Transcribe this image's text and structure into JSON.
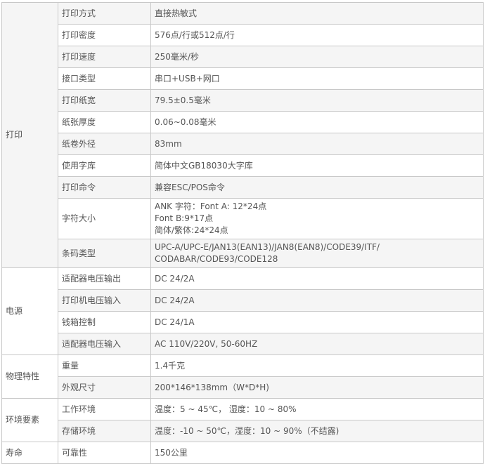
{
  "groups": [
    {
      "name": "打印",
      "rows": [
        {
          "key": "打印方式",
          "value": [
            "直接热敏式"
          ]
        },
        {
          "key": "打印密度",
          "value": [
            "576点/行或512点/行"
          ]
        },
        {
          "key": "打印速度",
          "value": [
            "250毫米/秒"
          ]
        },
        {
          "key": "接口类型",
          "value": [
            "串口+USB+网口"
          ]
        },
        {
          "key": "打印纸宽",
          "value": [
            "79.5±0.5毫米"
          ]
        },
        {
          "key": "纸张厚度",
          "value": [
            "0.06~0.08毫米"
          ]
        },
        {
          "key": "纸卷外径",
          "value": [
            "83mm"
          ]
        },
        {
          "key": "使用字库",
          "value": [
            "简体中文GB18030大字库"
          ]
        },
        {
          "key": "打印命令",
          "value": [
            "兼容ESC/POS命令"
          ]
        },
        {
          "key": "字符大小",
          "value": [
            "ANK 字符：Font A: 12*24点",
            "Font B:9*17点",
            "简体/繁体:24*24点"
          ]
        },
        {
          "key": "条码类型",
          "value": [
            "UPC-A/UPC-E/JAN13(EAN13)/JAN8(EAN8)/CODE39/ITF/",
            "CODABAR/CODE93/CODE128"
          ]
        }
      ]
    },
    {
      "name": "电源",
      "rows": [
        {
          "key": "适配器电压输出",
          "value": [
            "DC 24/2A"
          ]
        },
        {
          "key": "打印机电压输入",
          "value": [
            "DC 24/2A"
          ]
        },
        {
          "key": "钱箱控制",
          "value": [
            "DC 24/1A"
          ]
        },
        {
          "key": "适配器电压输入",
          "value": [
            "AC 110V/220V, 50-60HZ"
          ]
        }
      ]
    },
    {
      "name": "物理特性",
      "rows": [
        {
          "key": "重量",
          "value": [
            "1.4千克"
          ]
        },
        {
          "key": "外观尺寸",
          "value": [
            "200*146*138mm（W*D*H)"
          ]
        }
      ]
    },
    {
      "name": "环境要素",
      "rows": [
        {
          "key": "工作环境",
          "value": [
            "温度：5 ~ 45℃， 湿度：10 ~ 80%"
          ]
        },
        {
          "key": "存储环境",
          "value": [
            "温度：-10 ~ 50℃，湿度：10 ~ 90%（不结露)"
          ]
        }
      ]
    },
    {
      "name": "寿命",
      "rows": [
        {
          "key": "可靠性",
          "value": [
            "150公里"
          ]
        }
      ]
    }
  ]
}
